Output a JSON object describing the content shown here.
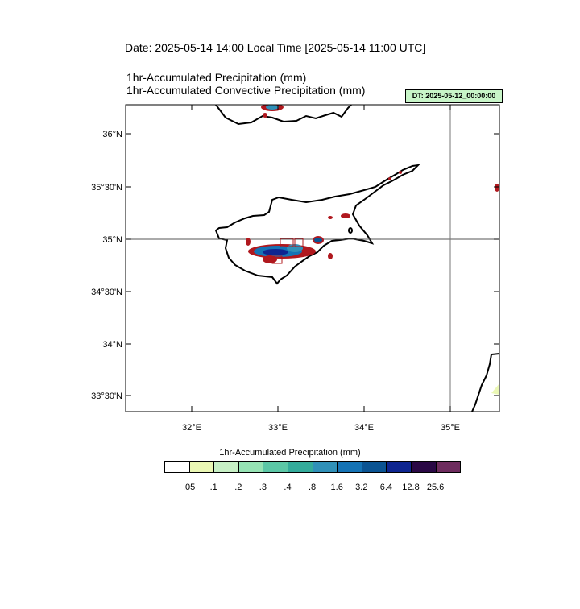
{
  "header": {
    "date_line": "Date: 2025-05-14  14:00 Local Time [2025-05-14  11:00 UTC]",
    "field1": "1hr-Accumulated Precipitation   (mm)",
    "field2": "1hr-Accumulated Convective Precipitation   (mm)"
  },
  "badge": {
    "dt": "DT: 2025-05-12_00:00:00"
  },
  "map": {
    "lat_ticks": [
      "36°N",
      "35°30'N",
      "35°N",
      "34°30'N",
      "34°N",
      "33°30'N"
    ],
    "lon_ticks": [
      "32°E",
      "33°E",
      "34°E",
      "35°E"
    ],
    "colors": {
      "coast": "#000000",
      "convective_contour": "#b0181e",
      "grid": "#555555"
    }
  },
  "colorbar": {
    "title": "1hr-Accumulated Precipitation  (mm)",
    "labels": [
      ".05",
      ".1",
      ".2",
      ".3",
      ".4",
      ".8",
      "1.6",
      "3.2",
      "6.4",
      "12.8",
      "25.6"
    ],
    "colors": [
      "#ffffff",
      "#eaf7b4",
      "#c7f0c5",
      "#96e3b4",
      "#5cc7a6",
      "#34ab9b",
      "#3090b8",
      "#1573b5",
      "#0b5493",
      "#0e2590",
      "#2a0845",
      "#6e2c5e"
    ]
  }
}
